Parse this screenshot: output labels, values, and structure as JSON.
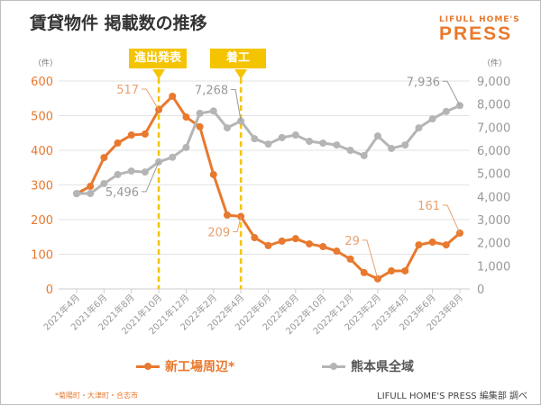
{
  "title": "賃貸物件 掲載数の推移",
  "logo": {
    "top": "LIFULL HOME'S",
    "main": "PRESS"
  },
  "colors": {
    "orange": "#e8792e",
    "gray": "#b5b5b5",
    "yellow": "#f5c400"
  },
  "footnote": "*菊陽町・大津町・合志市",
  "source": "LIFULL HOME'S PRESS 編集部 調べ",
  "chart_data": {
    "type": "line",
    "title": "賃貸物件 掲載数の推移",
    "y_left": {
      "unit": "（件）",
      "range": [
        0,
        600
      ],
      "ticks": [
        "0",
        "100",
        "200",
        "300",
        "400",
        "500",
        "600"
      ]
    },
    "y_right": {
      "unit": "（件）",
      "range": [
        0,
        9000
      ],
      "ticks": [
        "0",
        "1,000",
        "2,000",
        "3,000",
        "4,000",
        "5,000",
        "6,000",
        "7,000",
        "8,000",
        "9,000"
      ]
    },
    "grid": true,
    "legend_position": "bottom",
    "x": [
      "2021年4月",
      "2021年5月",
      "2021年6月",
      "2021年7月",
      "2021年8月",
      "2021年9月",
      "2021年10月",
      "2021年11月",
      "2021年12月",
      "2022年1月",
      "2022年2月",
      "2022年3月",
      "2022年4月",
      "2022年5月",
      "2022年6月",
      "2022年7月",
      "2022年8月",
      "2022年9月",
      "2022年10月",
      "2022年11月",
      "2022年12月",
      "2023年1月",
      "2023年2月",
      "2023年3月",
      "2023年4月",
      "2023年5月",
      "2023年6月",
      "2023年7月",
      "2023年8月"
    ],
    "x_tick_labels": [
      "2021年4月",
      "2021年6月",
      "2021年8月",
      "2021年10月",
      "2021年12月",
      "2022年2月",
      "2022年4月",
      "2022年6月",
      "2022年8月",
      "2022年10月",
      "2022年12月",
      "2023年2月",
      "2023年4月",
      "2023年6月",
      "2023年8月"
    ],
    "series": [
      {
        "name": "新工場周辺*",
        "axis": "left",
        "color": "#e8792e",
        "values": [
          275,
          296,
          379,
          421,
          444,
          447,
          517,
          556,
          496,
          468,
          330,
          213,
          209,
          148,
          125,
          138,
          145,
          130,
          122,
          109,
          86,
          47,
          29,
          52,
          52,
          127,
          135,
          127,
          161
        ]
      },
      {
        "name": "熊本県全域",
        "axis": "right",
        "color": "#b5b5b5",
        "values": [
          4130,
          4130,
          4560,
          4950,
          5100,
          5060,
          5496,
          5700,
          6120,
          7600,
          7700,
          6970,
          7268,
          6500,
          6270,
          6550,
          6660,
          6390,
          6310,
          6230,
          6000,
          5770,
          6620,
          6080,
          6230,
          6970,
          7360,
          7680,
          7936
        ]
      }
    ],
    "annotations": [
      {
        "label": "進出発表",
        "x": "2021年10月"
      },
      {
        "label": "着工",
        "x": "2022年4月"
      }
    ],
    "data_labels": [
      {
        "series": 0,
        "x": "2021年10月",
        "text": "517"
      },
      {
        "series": 0,
        "x": "2022年4月",
        "text": "209"
      },
      {
        "series": 0,
        "x": "2023年2月",
        "text": "29"
      },
      {
        "series": 0,
        "x": "2023年8月",
        "text": "161"
      },
      {
        "series": 1,
        "x": "2021年10月",
        "text": "5,496"
      },
      {
        "series": 1,
        "x": "2022年4月",
        "text": "7,268"
      },
      {
        "series": 1,
        "x": "2023年8月",
        "text": "7,936"
      }
    ]
  }
}
